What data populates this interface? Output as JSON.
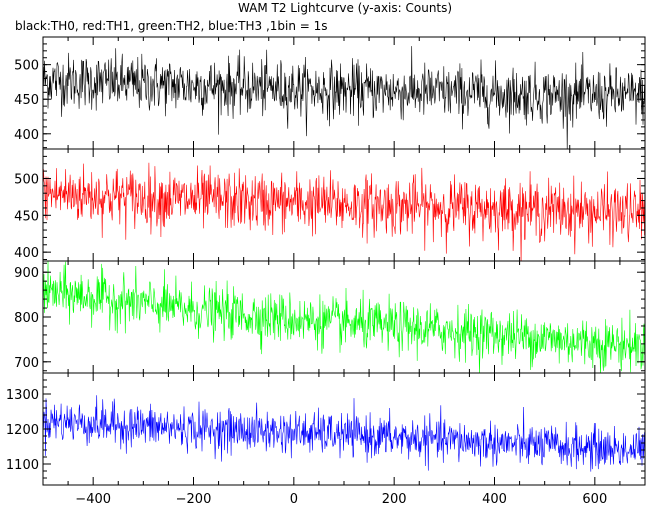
{
  "title": "WAM T2 Lightcurve (y-axis: Counts)",
  "subtitle": "black:TH0, red:TH1, green:TH2, blue:TH3 ,1bin = 1s",
  "chart_data": [
    {
      "type": "line",
      "name": "TH0",
      "color": "#000000",
      "xlim": [
        -500,
        700
      ],
      "ylim": [
        378,
        540
      ],
      "yticks": [
        400,
        450,
        500
      ],
      "noise_sd": 20,
      "x": [
        -500,
        -400,
        -300,
        -200,
        -100,
        0,
        100,
        200,
        300,
        400,
        500,
        600,
        700
      ],
      "y": [
        478,
        475,
        472,
        470,
        467,
        465,
        463,
        462,
        460,
        458,
        456,
        455,
        455
      ]
    },
    {
      "type": "line",
      "name": "TH1",
      "color": "#ff0000",
      "xlim": [
        -500,
        700
      ],
      "ylim": [
        388,
        540
      ],
      "yticks": [
        400,
        450,
        500
      ],
      "noise_sd": 20,
      "x": [
        -500,
        -400,
        -300,
        -200,
        -100,
        0,
        100,
        200,
        300,
        400,
        500,
        600,
        700
      ],
      "y": [
        480,
        477,
        474,
        471,
        469,
        467,
        465,
        463,
        461,
        459,
        457,
        455,
        453
      ]
    },
    {
      "type": "line",
      "name": "TH2",
      "color": "#00ff00",
      "xlim": [
        -500,
        700
      ],
      "ylim": [
        675,
        925
      ],
      "yticks": [
        700,
        800,
        900
      ],
      "noise_sd": 28,
      "x": [
        -500,
        -400,
        -300,
        -200,
        -100,
        0,
        100,
        200,
        300,
        400,
        500,
        600,
        700
      ],
      "y": [
        855,
        845,
        830,
        815,
        805,
        795,
        785,
        778,
        770,
        762,
        752,
        742,
        735
      ]
    },
    {
      "type": "line",
      "name": "TH3",
      "color": "#0000ff",
      "xlim": [
        -500,
        700
      ],
      "ylim": [
        1040,
        1360
      ],
      "yticks": [
        1100,
        1200,
        1300
      ],
      "noise_sd": 30,
      "x": [
        -500,
        -400,
        -300,
        -200,
        -100,
        0,
        100,
        200,
        300,
        400,
        500,
        600,
        700
      ],
      "y": [
        1225,
        1215,
        1208,
        1200,
        1195,
        1190,
        1183,
        1175,
        1168,
        1160,
        1152,
        1145,
        1140
      ]
    }
  ],
  "x_axis": {
    "ticks": [
      -400,
      -200,
      0,
      200,
      400,
      600
    ],
    "tick_labels": [
      "−400",
      "−200",
      "0",
      "200",
      "400",
      "600"
    ]
  }
}
